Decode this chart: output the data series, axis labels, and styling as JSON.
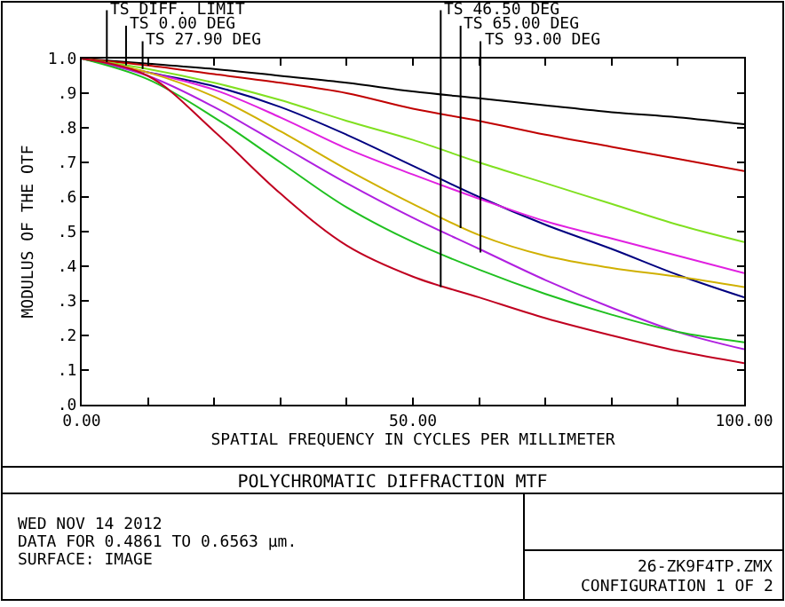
{
  "chart_data": {
    "type": "line",
    "title": "POLYCHROMATIC DIFFRACTION MTF",
    "xlabel": "SPATIAL FREQUENCY IN CYCLES PER MILLIMETER",
    "ylabel": "MODULUS OF THE OTF",
    "x": [
      0,
      10,
      20,
      30,
      40,
      50,
      60,
      70,
      80,
      90,
      100
    ],
    "series": [
      {
        "color": "#000000",
        "values": [
          1,
          0.985,
          0.97,
          0.95,
          0.93,
          0.905,
          0.885,
          0.865,
          0.845,
          0.83,
          0.81
        ]
      },
      {
        "color": "#c00000",
        "values": [
          1,
          0.98,
          0.955,
          0.93,
          0.9,
          0.855,
          0.82,
          0.78,
          0.745,
          0.71,
          0.675
        ]
      },
      {
        "color": "#80e020",
        "values": [
          1,
          0.97,
          0.93,
          0.88,
          0.82,
          0.765,
          0.7,
          0.64,
          0.58,
          0.52,
          0.47
        ]
      },
      {
        "color": "#000080",
        "values": [
          1,
          0.96,
          0.92,
          0.86,
          0.78,
          0.69,
          0.6,
          0.52,
          0.45,
          0.375,
          0.31
        ]
      },
      {
        "color": "#e020e0",
        "values": [
          1,
          0.96,
          0.91,
          0.83,
          0.74,
          0.665,
          0.595,
          0.53,
          0.48,
          0.43,
          0.38
        ]
      },
      {
        "color": "#d0b000",
        "values": [
          1,
          0.96,
          0.89,
          0.79,
          0.68,
          0.58,
          0.49,
          0.43,
          0.395,
          0.37,
          0.34
        ]
      },
      {
        "color": "#b020e0",
        "values": [
          1,
          0.95,
          0.86,
          0.75,
          0.64,
          0.54,
          0.45,
          0.36,
          0.28,
          0.21,
          0.16
        ]
      },
      {
        "color": "#20c020",
        "values": [
          1,
          0.94,
          0.83,
          0.7,
          0.57,
          0.47,
          0.39,
          0.32,
          0.26,
          0.21,
          0.18
        ]
      },
      {
        "color": "#c00020",
        "values": [
          1,
          0.95,
          0.79,
          0.61,
          0.46,
          0.37,
          0.31,
          0.25,
          0.2,
          0.155,
          0.12
        ]
      }
    ],
    "xlim": [
      0,
      100
    ],
    "ylim": [
      0,
      1
    ],
    "xticks": [
      {
        "value": 0,
        "label": "0.00"
      },
      {
        "value": 10,
        "label": null
      },
      {
        "value": 20,
        "label": null
      },
      {
        "value": 30,
        "label": null
      },
      {
        "value": 40,
        "label": null
      },
      {
        "value": 50,
        "label": "50.00"
      },
      {
        "value": 60,
        "label": null
      },
      {
        "value": 70,
        "label": null
      },
      {
        "value": 80,
        "label": null
      },
      {
        "value": 90,
        "label": null
      },
      {
        "value": 100,
        "label": "100.00"
      }
    ],
    "yticks": [
      {
        "value": 0,
        "label": ".0"
      },
      {
        "value": 0.1,
        "label": ".1"
      },
      {
        "value": 0.2,
        "label": ".2"
      },
      {
        "value": 0.3,
        "label": ".3"
      },
      {
        "value": 0.4,
        "label": ".4"
      },
      {
        "value": 0.5,
        "label": ".5"
      },
      {
        "value": 0.6,
        "label": ".6"
      },
      {
        "value": 0.7,
        "label": ".7"
      },
      {
        "value": 0.8,
        "label": ".8"
      },
      {
        "value": 0.9,
        "label": ".9"
      },
      {
        "value": 1,
        "label": "1.0"
      }
    ],
    "marker": "none",
    "line_style": "solid",
    "annotations": [
      {
        "text": "TS DIFF. LIMIT",
        "x": 4.6,
        "y": 0.99
      },
      {
        "text": "TS 0.00 DEG",
        "x": 7.5,
        "y": 0.98
      },
      {
        "text": "TS 27.90 DEG",
        "x": 10,
        "y": 0.97
      },
      {
        "text": "TS 46.50 DEG",
        "x": 55,
        "y": 0.34
      },
      {
        "text": "TS 65.00 DEG",
        "x": 58,
        "y": 0.51
      },
      {
        "text": "TS 93.00 DEG",
        "x": 61,
        "y": 0.44
      },
      "WED NOV 14 2012",
      "DATA FOR 0.4861 TO 0.6563 µm.",
      "SURFACE: IMAGE",
      "26-ZK9F4TP.ZMX",
      "CONFIGURATION 1 OF 2"
    ]
  }
}
